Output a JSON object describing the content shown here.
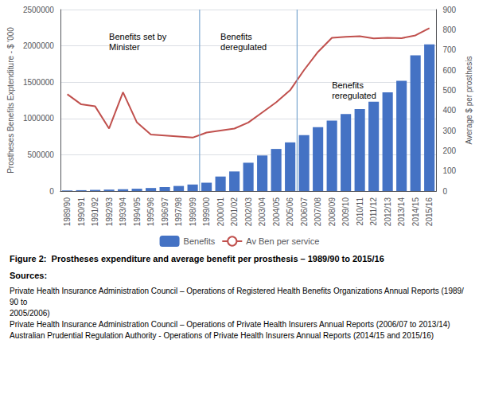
{
  "chart_data": {
    "type": "bar",
    "title": "Figure 2:  Prostheses expenditure and average benefit per prosthesis – 1989/90 to 2015/16",
    "categories": [
      "1989/90",
      "1990/91",
      "1991/92",
      "1992/93",
      "1993/94",
      "1994/95",
      "1995/96",
      "1996/97",
      "1997/98",
      "1998/99",
      "1999/00",
      "2000/01",
      "2001/02",
      "2002/03",
      "2003/04",
      "2004/05",
      "2005/06",
      "2006/07",
      "2007/08",
      "2008/09",
      "2009/10",
      "2010/11",
      "2011/12",
      "2012/13",
      "2013/14",
      "2014/15",
      "2015/16"
    ],
    "series": [
      {
        "name": "Benefits",
        "type": "bar",
        "color": "#4472C4",
        "values": [
          8000,
          12000,
          16000,
          20000,
          25000,
          32000,
          42000,
          55000,
          70000,
          90000,
          115000,
          200000,
          270000,
          390000,
          490000,
          580000,
          670000,
          770000,
          880000,
          970000,
          1060000,
          1130000,
          1230000,
          1360000,
          1520000,
          1870000,
          2020000
        ]
      },
      {
        "name": "Av Ben per service",
        "type": "line",
        "color": "#C0504D",
        "axis": "y2",
        "values": [
          480,
          430,
          420,
          310,
          490,
          340,
          280,
          275,
          270,
          265,
          290,
          300,
          310,
          340,
          390,
          440,
          500,
          600,
          690,
          760,
          765,
          768,
          757,
          760,
          758,
          772,
          808
        ]
      }
    ],
    "ylabel": "Prostheses Benefits Exptenditure - $ '000",
    "y2label": "Average $ per prosthesis",
    "ylim": [
      0,
      2500000
    ],
    "yticks": [
      0,
      500000,
      1000000,
      1500000,
      2000000,
      2500000
    ],
    "y2lim": [
      0,
      900
    ],
    "y2ticks": [
      0,
      100,
      200,
      300,
      400,
      500,
      600,
      700,
      800,
      900
    ],
    "grid": true,
    "legend": "bottom",
    "vlines": [
      9.5,
      16.5
    ],
    "annotations": [
      {
        "text": "Benefits set by\nMinister",
        "x": "1992/93",
        "y": 2200000
      },
      {
        "text": "Benefits\nderegulated",
        "x": "2000/01",
        "y": 2200000
      },
      {
        "text": "Benefits\nreregulated",
        "x": "2008/09",
        "y": 1530000
      }
    ],
    "sources_header": "Sources:",
    "sources": [
      "Private Health Insurance Administration Council – Operations of Registered Health Benefits Organizations Annual Reports (1989/90 to\n2005/2006)",
      "Private Health Insurance Administration Council – Operations of Private Health Insurers Annual Reports (2006/07 to 2013/14)",
      "Australian Prudential Regulation Authority - Operations of Private Health Insurers Annual Reports (2014/15 and 2015/16)"
    ]
  }
}
